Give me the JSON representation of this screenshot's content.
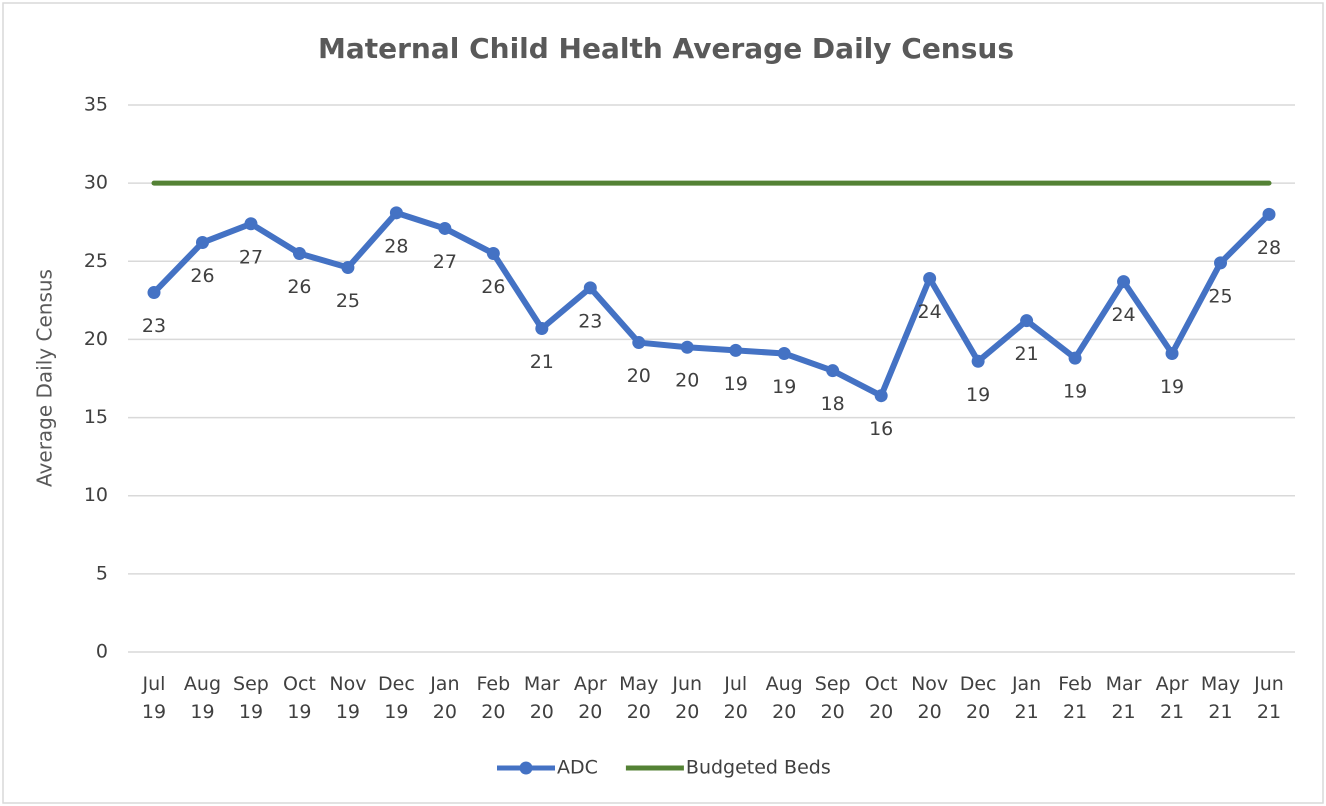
{
  "chart_data": {
    "type": "line",
    "title": "Maternal Child Health Average Daily Census",
    "y_label": "Average Daily Census",
    "categories": [
      "Jul 19",
      "Aug 19",
      "Sep 19",
      "Oct 19",
      "Nov 19",
      "Dec 19",
      "Jan 20",
      "Feb 20",
      "Mar 20",
      "Apr 20",
      "May 20",
      "Jun 20",
      "Jul 20",
      "Aug 20",
      "Sep 20",
      "Oct 20",
      "Nov 20",
      "Dec 20",
      "Jan 21",
      "Feb 21",
      "Mar 21",
      "Apr 21",
      "May 21",
      "Jun 21"
    ],
    "series": [
      {
        "name": "ADC",
        "color": "#4472c4",
        "marker": true,
        "values": [
          23.0,
          26.2,
          27.4,
          25.5,
          24.6,
          28.1,
          27.1,
          25.5,
          20.7,
          23.3,
          19.8,
          19.5,
          19.3,
          19.1,
          18.0,
          16.4,
          23.9,
          18.6,
          21.2,
          18.8,
          23.7,
          19.1,
          24.9,
          28.0
        ],
        "value_labels": [
          "23",
          "26",
          "27",
          "26",
          "25",
          "28",
          "27",
          "26",
          "21",
          "23",
          "20",
          "20",
          "19",
          "19",
          "18",
          "16",
          "24",
          "19",
          "21",
          "19",
          "24",
          "19",
          "25",
          "28"
        ]
      },
      {
        "name": "Budgeted Beds",
        "color": "#548235",
        "marker": false,
        "values": [
          30,
          30,
          30,
          30,
          30,
          30,
          30,
          30,
          30,
          30,
          30,
          30,
          30,
          30,
          30,
          30,
          30,
          30,
          30,
          30,
          30,
          30,
          30,
          30
        ]
      }
    ],
    "ylim": [
      0,
      35
    ],
    "yticks": [
      0,
      5,
      10,
      15,
      20,
      25,
      30,
      35
    ],
    "grid": true,
    "legend": "bottom"
  }
}
